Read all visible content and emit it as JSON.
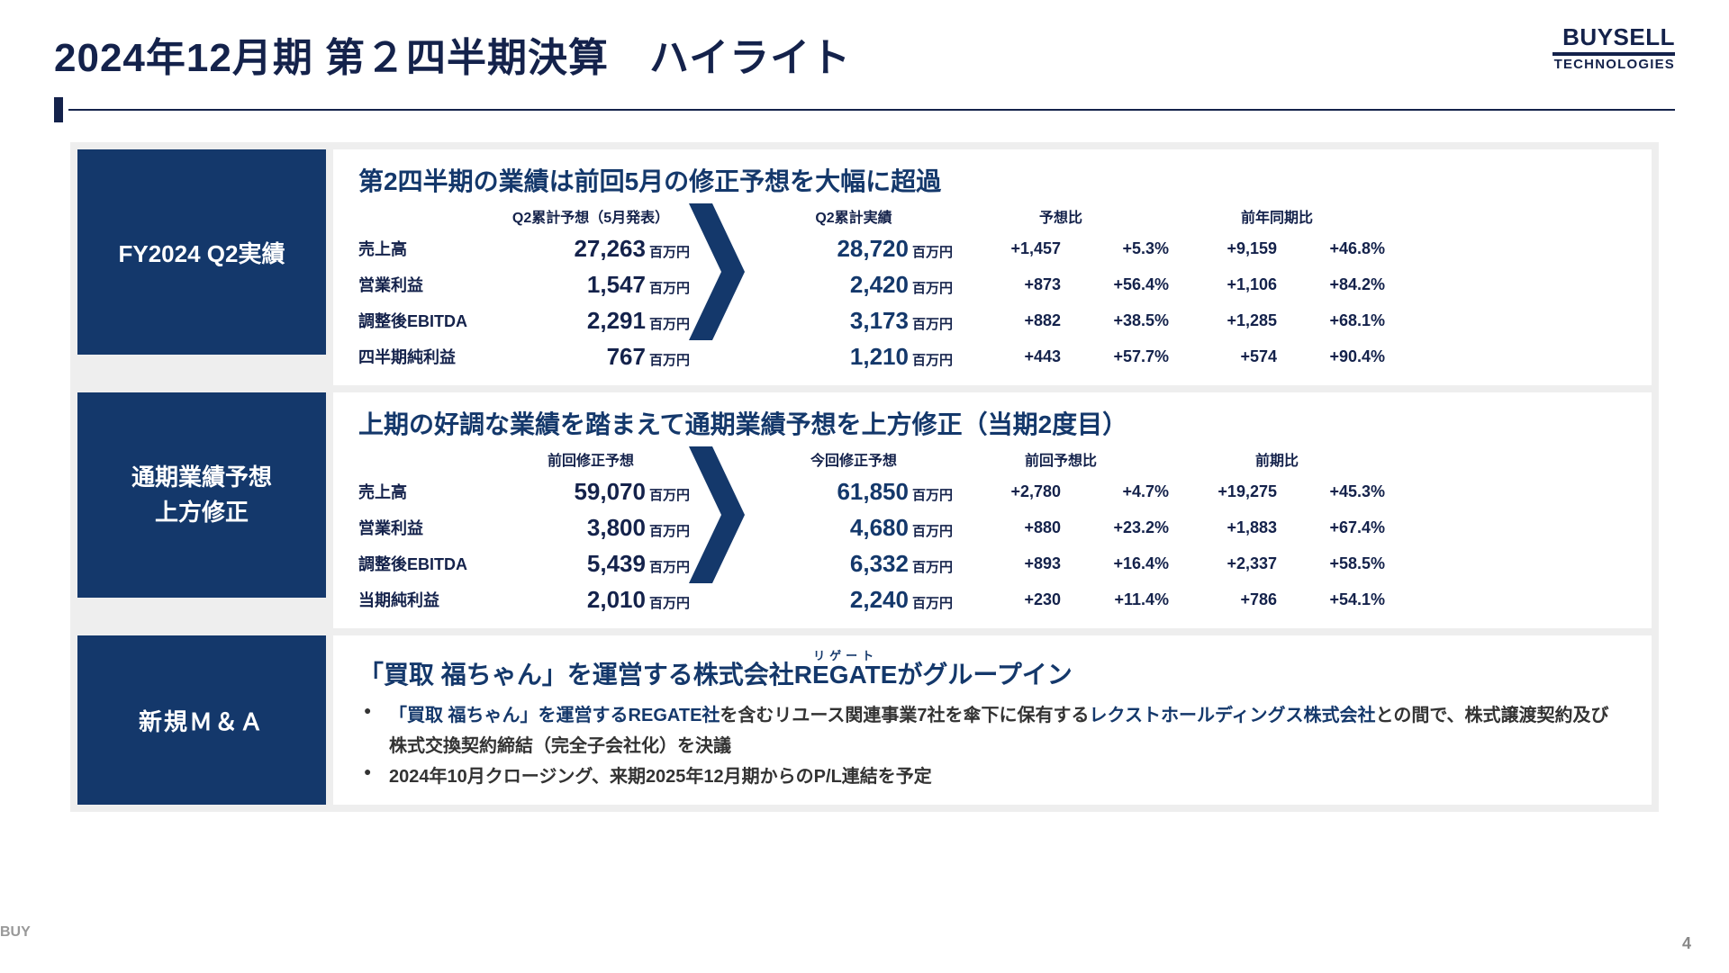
{
  "title": "2024年12月期  第２四半期決算　ハイライト",
  "logo": {
    "top": "BUYSELL",
    "bottom": "TECHNOLOGIES"
  },
  "pageNumber": "4",
  "watermark": "BUY",
  "colors": {
    "brand": "#14386b",
    "text": "#14224b",
    "panelBg": "#ffffff",
    "frameBg": "#eeeeee"
  },
  "s1": {
    "sidebar": "FY2024  Q2実績",
    "heading": "第2四半期の業績は前回5月の修正予想を大幅に超過",
    "headers": {
      "fc": "Q2累計予想（5月発表）",
      "act": "Q2累計実績",
      "grp1": "予想比",
      "grp2": "前年同期比"
    },
    "unit": "百万円",
    "rows": [
      {
        "label": "売上高",
        "fc": "27,263",
        "act": "28,720",
        "d1": "+1,457",
        "d2": "+5.3%",
        "d3": "+9,159",
        "d4": "+46.8%"
      },
      {
        "label": "営業利益",
        "fc": "1,547",
        "act": "2,420",
        "d1": "+873",
        "d2": "+56.4%",
        "d3": "+1,106",
        "d4": "+84.2%"
      },
      {
        "label": "調整後EBITDA",
        "fc": "2,291",
        "act": "3,173",
        "d1": "+882",
        "d2": "+38.5%",
        "d3": "+1,285",
        "d4": "+68.1%"
      },
      {
        "label": "四半期純利益",
        "fc": "767",
        "act": "1,210",
        "d1": "+443",
        "d2": "+57.7%",
        "d3": "+574",
        "d4": "+90.4%"
      }
    ]
  },
  "s2": {
    "sidebarL1": "通期業績予想",
    "sidebarL2": "上方修正",
    "heading": "上期の好調な業績を踏まえて通期業績予想を上方修正（当期2度目）",
    "headers": {
      "fc": "前回修正予想",
      "act": "今回修正予想",
      "grp1": "前回予想比",
      "grp2": "前期比"
    },
    "unit": "百万円",
    "rows": [
      {
        "label": "売上高",
        "fc": "59,070",
        "act": "61,850",
        "d1": "+2,780",
        "d2": "+4.7%",
        "d3": "+19,275",
        "d4": "+45.3%"
      },
      {
        "label": "営業利益",
        "fc": "3,800",
        "act": "4,680",
        "d1": "+880",
        "d2": "+23.2%",
        "d3": "+1,883",
        "d4": "+67.4%"
      },
      {
        "label": "調整後EBITDA",
        "fc": "5,439",
        "act": "6,332",
        "d1": "+893",
        "d2": "+16.4%",
        "d3": "+2,337",
        "d4": "+58.5%"
      },
      {
        "label": "当期純利益",
        "fc": "2,010",
        "act": "2,240",
        "d1": "+230",
        "d2": "+11.4%",
        "d3": "+786",
        "d4": "+54.1%"
      }
    ]
  },
  "s3": {
    "sidebar": "新規Ｍ＆Ａ",
    "headPre": "「買取 福ちゃん」を運営する株式会社",
    "headRubyWord": "REGATE",
    "headRuby": "リゲート",
    "headPost": "がグループイン",
    "b1a": "「買取 福ちゃん」を運営するREGATE社",
    "b1b": "を含むリユース関連事業7社を傘下に保有する",
    "b1c": "レクストホールディングス株式会社",
    "b1d": "との間で、株式譲渡契約及び株式交換契約締結（完全子会社化）を決議",
    "b2": "2024年10月クロージング、来期2025年12月期からのP/L連結を予定"
  }
}
